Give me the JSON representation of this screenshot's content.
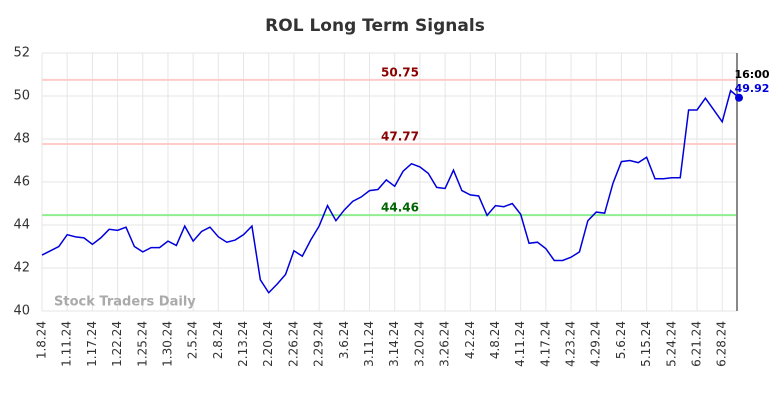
{
  "chart_data": {
    "type": "line",
    "title": "ROL Long Term Signals",
    "categories": [
      "1.8.24",
      null,
      null,
      "1.11.24",
      null,
      null,
      "1.17.24",
      null,
      null,
      "1.22.24",
      null,
      null,
      "1.25.24",
      null,
      null,
      "1.30.24",
      null,
      null,
      "2.5.24",
      null,
      null,
      "2.8.24",
      null,
      null,
      "2.13.24",
      null,
      null,
      "2.20.24",
      null,
      null,
      "2.26.24",
      null,
      null,
      "2.29.24",
      null,
      null,
      "3.6.24",
      null,
      null,
      "3.11.24",
      null,
      null,
      "3.14.24",
      null,
      null,
      "3.20.24",
      null,
      null,
      "3.26.24",
      null,
      null,
      "4.2.24",
      null,
      null,
      "4.8.24",
      null,
      null,
      "4.11.24",
      null,
      null,
      "4.17.24",
      null,
      null,
      "4.23.24",
      null,
      null,
      "4.29.24",
      null,
      null,
      "5.6.24",
      null,
      null,
      "5.15.24",
      null,
      null,
      "5.24.24",
      null,
      null,
      "6.21.24",
      null,
      null,
      "6.28.24",
      null,
      null
    ],
    "values": [
      42.6,
      42.8,
      43.0,
      43.55,
      43.45,
      43.4,
      43.1,
      43.4,
      43.8,
      43.75,
      43.9,
      43.0,
      42.75,
      42.95,
      42.95,
      43.25,
      43.05,
      43.95,
      43.25,
      43.7,
      43.9,
      43.45,
      43.2,
      43.3,
      43.55,
      43.95,
      41.45,
      40.85,
      41.25,
      41.7,
      42.8,
      42.55,
      43.3,
      43.95,
      44.9,
      44.2,
      44.7,
      45.1,
      45.3,
      45.6,
      45.65,
      46.1,
      45.8,
      46.5,
      46.85,
      46.7,
      46.4,
      45.75,
      45.7,
      46.55,
      45.6,
      45.4,
      45.35,
      44.45,
      44.9,
      44.85,
      45.0,
      44.5,
      43.15,
      43.2,
      42.9,
      42.35,
      42.35,
      42.5,
      42.75,
      44.2,
      44.6,
      44.55,
      45.95,
      46.95,
      47.0,
      46.9,
      47.15,
      46.15,
      46.15,
      46.2,
      46.2,
      49.35,
      49.35,
      49.9,
      49.35,
      48.8,
      50.25,
      49.92
    ],
    "color": "#0000dd",
    "ylim": [
      40,
      52
    ],
    "yticks": [
      40,
      42,
      44,
      46,
      48,
      50,
      52
    ],
    "grid": true,
    "hlines": [
      {
        "value": 50.75,
        "color": "#ffcccc",
        "label_color": "#8b0000"
      },
      {
        "value": 47.77,
        "color": "#ffcccc",
        "label_color": "#8b0000"
      },
      {
        "value": 44.46,
        "color": "#90ee90",
        "label_color": "#006400"
      }
    ],
    "last_time": "16:00",
    "watermark": "Stock Traders Daily"
  }
}
